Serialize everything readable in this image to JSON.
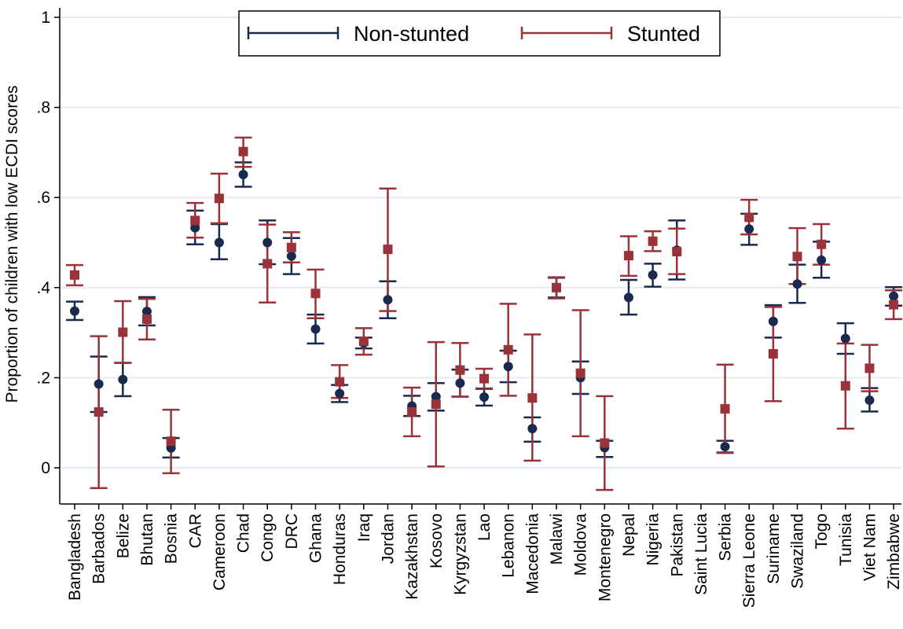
{
  "chart_data": {
    "type": "scatter",
    "subtype": "point-with-error-bars",
    "title": "",
    "xlabel": "",
    "ylabel": "Proportion of children with low ECDI scores",
    "ylim": [
      0,
      1
    ],
    "yticks": [
      {
        "value": 0,
        "label": "0"
      },
      {
        "value": 0.2,
        "label": ".2"
      },
      {
        "value": 0.4,
        "label": ".4"
      },
      {
        "value": 0.6,
        "label": ".6"
      },
      {
        "value": 0.8,
        "label": ".8"
      },
      {
        "value": 1,
        "label": "1"
      }
    ],
    "grid": true,
    "legend_position": "top-center",
    "categories": [
      "Bangladesh",
      "Barbados",
      "Belize",
      "Bhutan",
      "Bosnia",
      "CAR",
      "Cameroon",
      "Chad",
      "Congo",
      "DRC",
      "Ghana",
      "Honduras",
      "Iraq",
      "Jordan",
      "Kazakhstan",
      "Kosovo",
      "Kyrgyzstan",
      "Lao",
      "Lebanon",
      "Macedonia",
      "Malawi",
      "Moldova",
      "Montenegro",
      "Nepal",
      "Nigeria",
      "Pakistan",
      "Saint Lucia",
      "Serbia",
      "Sierra Leone",
      "Suriname",
      "Swaziland",
      "Togo",
      "Tunisia",
      "Viet Nam",
      "Zimbabwe"
    ],
    "series": [
      {
        "name": "Non-stunted",
        "color": "#1a2a4f",
        "marker": "circle",
        "values": [
          0.348,
          0.186,
          0.196,
          0.347,
          0.044,
          0.533,
          0.5,
          0.651,
          0.5,
          0.47,
          0.308,
          0.165,
          0.277,
          0.373,
          0.137,
          0.158,
          0.188,
          0.157,
          0.225,
          0.087,
          0.4,
          0.2,
          0.045,
          0.378,
          0.428,
          0.483,
          null,
          0.047,
          0.53,
          0.325,
          0.408,
          0.461,
          0.287,
          0.15,
          0.381
        ],
        "lower": [
          0.328,
          0.124,
          0.159,
          0.316,
          0.023,
          0.496,
          0.463,
          0.624,
          0.452,
          0.43,
          0.276,
          0.146,
          0.265,
          0.332,
          0.115,
          0.127,
          0.158,
          0.138,
          0.19,
          0.058,
          0.378,
          0.164,
          0.024,
          0.34,
          0.402,
          0.418,
          null,
          0.034,
          0.495,
          0.289,
          0.366,
          0.422,
          0.253,
          0.125,
          0.36
        ],
        "upper": [
          0.369,
          0.247,
          0.233,
          0.379,
          0.066,
          0.571,
          0.541,
          0.678,
          0.549,
          0.51,
          0.34,
          0.184,
          0.289,
          0.414,
          0.16,
          0.188,
          0.218,
          0.176,
          0.26,
          0.112,
          0.422,
          0.236,
          0.06,
          0.417,
          0.453,
          0.549,
          null,
          0.06,
          0.564,
          0.361,
          0.451,
          0.502,
          0.321,
          0.177,
          0.401
        ]
      },
      {
        "name": "Stunted",
        "color": "#9a3239",
        "marker": "square",
        "values": [
          0.428,
          0.124,
          0.301,
          0.33,
          0.059,
          0.549,
          0.598,
          0.702,
          0.453,
          0.489,
          0.387,
          0.191,
          0.281,
          0.485,
          0.124,
          0.141,
          0.217,
          0.198,
          0.262,
          0.155,
          0.4,
          0.21,
          0.055,
          0.471,
          0.503,
          0.48,
          null,
          0.131,
          0.556,
          0.253,
          0.469,
          0.496,
          0.182,
          0.221,
          0.362
        ],
        "lower": [
          0.405,
          -0.045,
          0.233,
          0.285,
          -0.012,
          0.511,
          0.543,
          0.668,
          0.367,
          0.456,
          0.332,
          0.155,
          0.251,
          0.348,
          0.07,
          0.003,
          0.158,
          0.175,
          0.16,
          0.016,
          0.376,
          0.07,
          -0.049,
          0.426,
          0.481,
          0.43,
          null,
          0.033,
          0.518,
          0.148,
          0.408,
          0.451,
          0.087,
          0.17,
          0.33
        ],
        "upper": [
          0.45,
          0.292,
          0.37,
          0.375,
          0.129,
          0.588,
          0.653,
          0.733,
          0.54,
          0.523,
          0.44,
          0.228,
          0.31,
          0.62,
          0.178,
          0.279,
          0.277,
          0.22,
          0.364,
          0.296,
          0.423,
          0.35,
          0.159,
          0.514,
          0.525,
          0.531,
          null,
          0.229,
          0.595,
          0.357,
          0.532,
          0.541,
          0.276,
          0.273,
          0.394
        ]
      }
    ]
  }
}
